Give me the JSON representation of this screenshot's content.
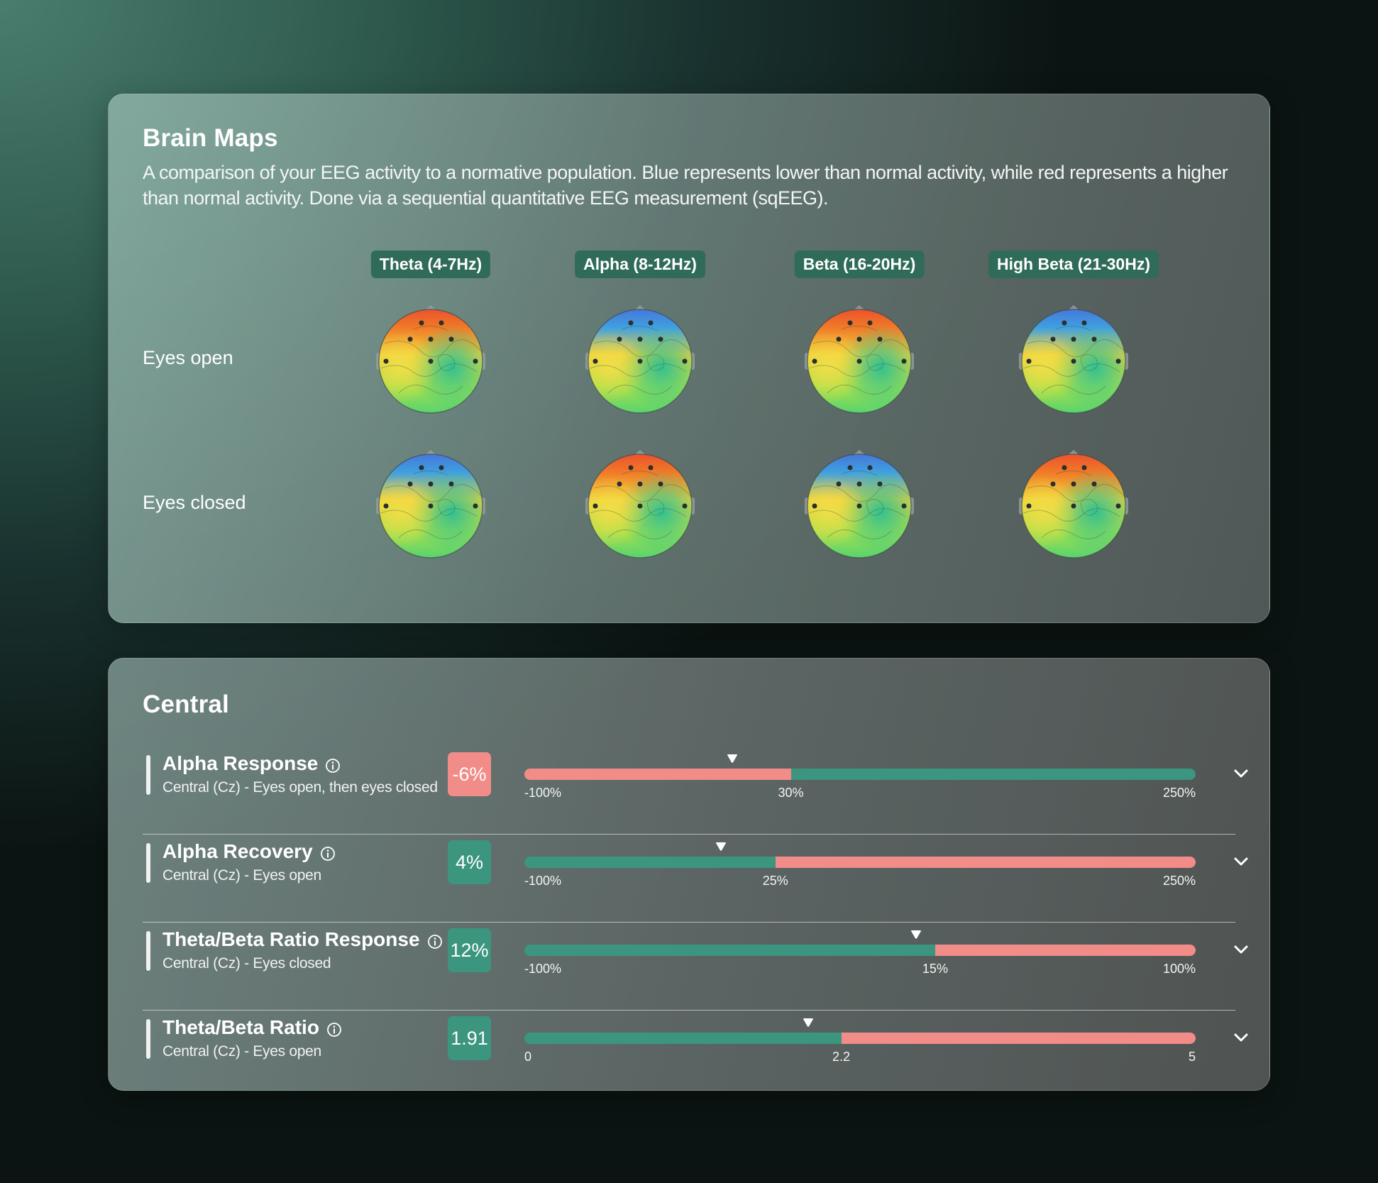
{
  "brain_maps": {
    "title": "Brain Maps",
    "description": "A comparison of your EEG activity to a normative population. Blue represents lower than normal activity, while red represents a higher than normal activity. Done via a sequential quantitative EEG measurement (sqEEG).",
    "bands": [
      "Theta (4-7Hz)",
      "Alpha (8-12Hz)",
      "Beta (16-20Hz)",
      "High Beta (21-30Hz)"
    ],
    "rows": [
      {
        "label": "Eyes open",
        "maps": [
          "red-frontal",
          "blue-frontal",
          "red-frontal",
          "blue-frontal"
        ]
      },
      {
        "label": "Eyes closed",
        "maps": [
          "blue-frontal",
          "red-frontal",
          "blue-frontal",
          "red-frontal"
        ]
      }
    ],
    "colors": {
      "band_label_bg": "#2f6b58",
      "high": "#e8402e",
      "low": "#4a63d8",
      "normal": "#3fd07a"
    }
  },
  "central": {
    "title": "Central",
    "metrics": [
      {
        "name": "Alpha Response",
        "subtitle": "Central (Cz) - Eyes open, then eyes closed",
        "value": "-6%",
        "status": "red",
        "scale": {
          "min": "-100%",
          "mid": "30%",
          "max": "250%"
        },
        "left_color": "red",
        "marker_fraction": 0.31,
        "split_fraction": 0.397
      },
      {
        "name": "Alpha Recovery",
        "subtitle": "Central (Cz) - Eyes open",
        "value": "4%",
        "status": "green",
        "scale": {
          "min": "-100%",
          "mid": "25%",
          "max": "250%"
        },
        "left_color": "green",
        "marker_fraction": 0.293,
        "split_fraction": 0.374
      },
      {
        "name": "Theta/Beta Ratio Response",
        "subtitle": "Central (Cz) - Eyes closed",
        "value": "12%",
        "status": "green",
        "scale": {
          "min": "-100%",
          "mid": "15%",
          "max": "100%"
        },
        "left_color": "green",
        "marker_fraction": 0.583,
        "split_fraction": 0.612
      },
      {
        "name": "Theta/Beta Ratio",
        "subtitle": "Central (Cz) - Eyes open",
        "value": "1.91",
        "status": "green",
        "scale": {
          "min": "0",
          "mid": "2.2",
          "max": "5"
        },
        "left_color": "green",
        "marker_fraction": 0.423,
        "split_fraction": 0.472
      }
    ],
    "colors": {
      "red": "#f28c88",
      "green": "#3b957f"
    }
  }
}
